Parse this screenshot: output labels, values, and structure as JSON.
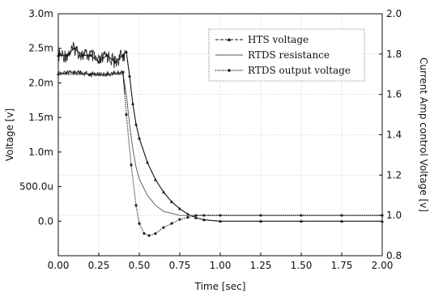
{
  "chart_data": {
    "type": "line",
    "xlabel": "Time [sec]",
    "ylabel_left": "Voltage [v]",
    "ylabel_right": "Current Amp control Voltage [v]",
    "xlim": [
      0,
      2.0
    ],
    "ylim_left": [
      -0.0005,
      0.003
    ],
    "ylim_right": [
      0.8,
      2.0
    ],
    "x_ticks": [
      "0.00",
      "0.25",
      "0.50",
      "0.75",
      "1.00",
      "1.25",
      "1.50",
      "1.75",
      "2.00"
    ],
    "y_ticks_left": [
      "3.0m",
      "2.5m",
      "2.0m",
      "1.5m",
      "1.0m",
      "500.0u",
      "0.0"
    ],
    "y_ticks_right": [
      "2.0",
      "1.8",
      "1.6",
      "1.4",
      "1.2",
      "1.0",
      "0.8"
    ],
    "grid": true,
    "legend_position": "top-right",
    "series": [
      {
        "name": "HTS voltage",
        "axis": "left",
        "x": [
          0,
          0.05,
          0.1,
          0.15,
          0.2,
          0.25,
          0.3,
          0.35,
          0.4,
          0.42,
          0.44,
          0.46,
          0.48,
          0.5,
          0.55,
          0.6,
          0.65,
          0.7,
          0.75,
          0.8,
          0.85,
          0.9,
          1.0,
          1.25,
          1.5,
          1.75,
          2.0
        ],
        "y": [
          0.0024,
          0.0024,
          0.0025,
          0.0024,
          0.0024,
          0.0023,
          0.0024,
          0.0023,
          0.0024,
          0.00245,
          0.0021,
          0.0017,
          0.0014,
          0.0012,
          0.00085,
          0.0006,
          0.00042,
          0.00028,
          0.00018,
          0.0001,
          5e-05,
          2e-05,
          0.0,
          0.0,
          0.0,
          0.0,
          0.0
        ]
      },
      {
        "name": "RTDS resistance",
        "axis": "right",
        "x": [
          0,
          0.1,
          0.2,
          0.3,
          0.4,
          0.42,
          0.44,
          0.46,
          0.48,
          0.5,
          0.55,
          0.6,
          0.65,
          0.7,
          0.75,
          0.8,
          0.9,
          1.0,
          1.25,
          1.5,
          1.75,
          2.0
        ],
        "y": [
          1.7,
          1.7,
          1.7,
          1.7,
          1.7,
          1.6,
          1.45,
          1.33,
          1.24,
          1.18,
          1.1,
          1.05,
          1.02,
          1.01,
          1.0,
          1.0,
          1.0,
          1.0,
          1.0,
          1.0,
          1.0,
          1.0
        ]
      },
      {
        "name": "RTDS output voltage",
        "axis": "right",
        "x": [
          0,
          0.1,
          0.2,
          0.3,
          0.4,
          0.42,
          0.45,
          0.48,
          0.5,
          0.53,
          0.56,
          0.6,
          0.65,
          0.7,
          0.75,
          0.8,
          0.85,
          0.9,
          1.0,
          1.25,
          1.5,
          1.75,
          2.0
        ],
        "y": [
          1.7,
          1.71,
          1.7,
          1.7,
          1.71,
          1.5,
          1.25,
          1.05,
          0.96,
          0.91,
          0.9,
          0.91,
          0.94,
          0.96,
          0.98,
          0.99,
          1.0,
          1.0,
          1.0,
          1.0,
          1.0,
          1.0,
          1.0
        ]
      }
    ]
  }
}
